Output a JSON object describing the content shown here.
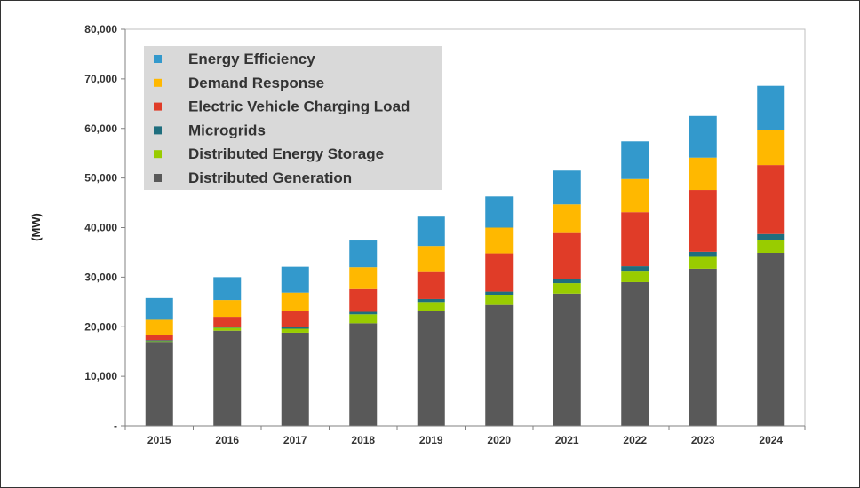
{
  "chart_data": {
    "type": "bar",
    "stacked": true,
    "ylabel": "(MW)",
    "xlabel": "",
    "title": "",
    "ylim": [
      0,
      80000
    ],
    "yticks": [
      0,
      10000,
      20000,
      30000,
      40000,
      50000,
      60000,
      70000,
      80000
    ],
    "ytick_labels": [
      "-",
      "10,000",
      "20,000",
      "30,000",
      "40,000",
      "50,000",
      "60,000",
      "70,000",
      "80,000"
    ],
    "grid": false,
    "legend_position": "top-left",
    "categories": [
      "2015",
      "2016",
      "2017",
      "2018",
      "2019",
      "2020",
      "2021",
      "2022",
      "2023",
      "2024"
    ],
    "series": [
      {
        "name": "Distributed Generation",
        "color": "#595959",
        "values": [
          16800,
          19200,
          18800,
          20700,
          23100,
          24400,
          26700,
          29000,
          31700,
          34900
        ]
      },
      {
        "name": "Distributed Energy Storage",
        "color": "#99cc00",
        "values": [
          300,
          600,
          800,
          1800,
          1900,
          2000,
          2100,
          2300,
          2400,
          2600
        ]
      },
      {
        "name": "Microgrids",
        "color": "#1f6e7e",
        "values": [
          200,
          200,
          300,
          500,
          600,
          700,
          800,
          900,
          1000,
          1200
        ]
      },
      {
        "name": "Electric Vehicle Charging Load",
        "color": "#e03c28",
        "values": [
          1100,
          2000,
          3200,
          4600,
          5600,
          7700,
          9300,
          10900,
          12500,
          13900
        ]
      },
      {
        "name": "Demand Response",
        "color": "#ffb800",
        "values": [
          3000,
          3400,
          3800,
          4400,
          5100,
          5200,
          5800,
          6700,
          6500,
          7000
        ]
      },
      {
        "name": "Energy Efficiency",
        "color": "#3399cc",
        "values": [
          4400,
          4600,
          5200,
          5400,
          5900,
          6300,
          6800,
          7600,
          8400,
          9000
        ]
      }
    ],
    "legend_order": [
      "Energy Efficiency",
      "Demand Response",
      "Electric Vehicle Charging Load",
      "Microgrids",
      "Distributed Energy Storage",
      "Distributed Generation"
    ]
  }
}
